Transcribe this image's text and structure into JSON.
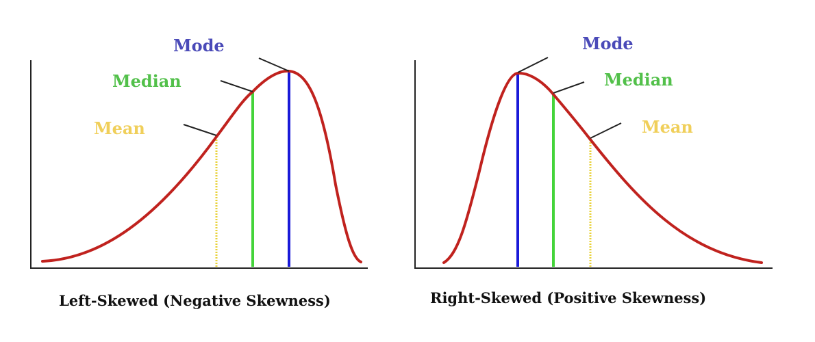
{
  "colors": {
    "curve": "#c0221e",
    "mode": "#1a1ad8",
    "median": "#44d43a",
    "mean": "#e8d23a",
    "mode_label": "#4a4ab8",
    "median_label": "#52c04a",
    "mean_label": "#f0cf5a",
    "axis": "#222222"
  },
  "left_panel": {
    "caption": "Left-Skewed (Negative Skewness)",
    "labels": {
      "mode": "Mode",
      "median": "Median",
      "mean": "Mean"
    }
  },
  "right_panel": {
    "caption": "Right-Skewed (Positive Skewness)",
    "labels": {
      "mode": "Mode",
      "median": "Median",
      "mean": "Mean"
    }
  }
}
